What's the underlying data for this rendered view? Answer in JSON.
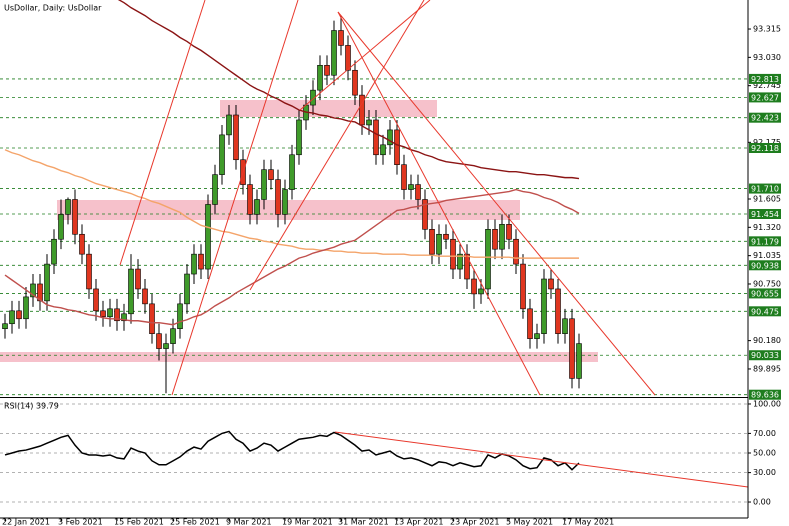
{
  "chart_data": [
    {
      "type": "candlestick",
      "title": "UsDollar, Daily:  UsDollar",
      "categories": [
        "22 Jan 2021",
        null,
        null,
        null,
        null,
        null,
        null,
        null,
        "3 Feb 2021",
        null,
        null,
        null,
        null,
        null,
        null,
        null,
        "15 Feb 2021",
        null,
        null,
        null,
        null,
        null,
        null,
        null,
        "25 Feb 2021",
        null,
        null,
        null,
        null,
        null,
        null,
        null,
        "9 Mar 2021",
        null,
        null,
        null,
        null,
        null,
        null,
        null,
        "19 Mar 2021",
        null,
        null,
        null,
        null,
        null,
        null,
        null,
        "31 Mar 2021",
        null,
        null,
        null,
        null,
        null,
        null,
        null,
        "13 Apr 2021",
        null,
        null,
        null,
        null,
        null,
        null,
        null,
        "23 Apr 2021",
        null,
        null,
        null,
        null,
        null,
        null,
        null,
        "5 May 2021",
        null,
        null,
        null,
        null,
        null,
        null,
        null,
        "17 May 2021",
        null,
        null
      ],
      "open": [
        90.3,
        90.35,
        90.48,
        90.4,
        90.62,
        90.75,
        90.58,
        90.95,
        91.2,
        91.45,
        91.6,
        91.25,
        91.05,
        90.7,
        90.48,
        90.42,
        90.5,
        90.38,
        90.45,
        90.9,
        90.7,
        90.55,
        90.25,
        90.1,
        90.15,
        90.3,
        90.55,
        90.85,
        91.05,
        90.9,
        91.55,
        91.85,
        92.25,
        92.45,
        92.0,
        91.75,
        91.45,
        91.6,
        91.9,
        91.8,
        91.45,
        91.7,
        92.05,
        92.4,
        92.55,
        92.7,
        92.95,
        92.85,
        93.3,
        93.15,
        92.9,
        92.65,
        92.35,
        92.4,
        92.05,
        92.15,
        92.3,
        91.95,
        91.7,
        91.75,
        91.6,
        91.3,
        91.05,
        91.25,
        91.2,
        90.9,
        91.05,
        90.8,
        90.65,
        90.7,
        91.3,
        91.1,
        91.35,
        91.2,
        90.95,
        90.5,
        90.2,
        90.25,
        90.8,
        90.7,
        90.25,
        90.4,
        89.8
      ],
      "high": [
        90.45,
        90.58,
        90.58,
        90.72,
        90.85,
        90.85,
        91.05,
        91.3,
        91.6,
        91.62,
        91.7,
        91.35,
        91.15,
        90.8,
        90.58,
        90.6,
        90.6,
        90.55,
        91.05,
        91.0,
        90.8,
        90.65,
        90.35,
        90.25,
        90.4,
        90.65,
        90.95,
        91.15,
        91.15,
        91.65,
        91.95,
        92.35,
        92.55,
        92.55,
        92.1,
        91.85,
        91.7,
        92.0,
        92.0,
        91.9,
        91.8,
        92.15,
        92.5,
        92.65,
        92.8,
        93.05,
        93.05,
        93.4,
        93.45,
        93.25,
        93.0,
        92.75,
        92.5,
        92.5,
        92.25,
        92.4,
        92.4,
        92.05,
        91.85,
        91.85,
        91.7,
        91.4,
        91.35,
        91.35,
        91.3,
        91.15,
        91.15,
        90.9,
        90.8,
        91.4,
        91.4,
        91.45,
        91.45,
        91.3,
        91.05,
        90.6,
        90.35,
        90.9,
        90.9,
        90.8,
        90.5,
        90.5,
        90.25
      ],
      "low": [
        90.2,
        90.25,
        90.3,
        90.3,
        90.52,
        90.48,
        90.48,
        90.85,
        91.1,
        91.35,
        91.15,
        90.95,
        90.6,
        90.38,
        90.32,
        90.32,
        90.28,
        90.28,
        90.35,
        90.6,
        90.45,
        90.15,
        89.98,
        89.65,
        90.05,
        90.2,
        90.45,
        90.75,
        90.8,
        90.8,
        91.45,
        91.75,
        92.15,
        91.9,
        91.65,
        91.35,
        91.35,
        91.5,
        91.7,
        91.32,
        91.35,
        91.6,
        91.95,
        92.3,
        92.45,
        92.6,
        92.75,
        92.75,
        93.05,
        92.8,
        92.55,
        92.25,
        92.25,
        91.95,
        91.95,
        92.05,
        91.85,
        91.6,
        91.6,
        91.5,
        91.2,
        90.95,
        90.95,
        91.1,
        90.8,
        90.8,
        90.7,
        90.5,
        90.55,
        90.6,
        91.0,
        91.0,
        91.1,
        90.85,
        90.4,
        90.1,
        90.1,
        90.15,
        90.6,
        90.15,
        90.15,
        89.7,
        89.7
      ],
      "close": [
        90.35,
        90.48,
        90.4,
        90.62,
        90.75,
        90.58,
        90.95,
        91.2,
        91.45,
        91.6,
        91.25,
        91.05,
        90.7,
        90.48,
        90.42,
        90.5,
        90.38,
        90.45,
        90.9,
        90.7,
        90.55,
        90.25,
        90.1,
        90.15,
        90.3,
        90.55,
        90.85,
        91.05,
        90.9,
        91.55,
        91.85,
        92.25,
        92.45,
        92.0,
        91.75,
        91.45,
        91.6,
        91.9,
        91.8,
        91.45,
        91.7,
        92.05,
        92.4,
        92.55,
        92.7,
        92.95,
        92.85,
        93.3,
        93.15,
        92.9,
        92.65,
        92.35,
        92.4,
        92.05,
        92.15,
        92.3,
        91.95,
        91.7,
        91.75,
        91.6,
        91.3,
        91.05,
        91.25,
        91.2,
        90.9,
        91.05,
        90.8,
        90.65,
        90.7,
        91.3,
        91.1,
        91.35,
        91.2,
        90.95,
        90.5,
        90.2,
        90.25,
        90.8,
        90.7,
        90.25,
        90.4,
        89.8,
        90.15
      ],
      "up_color": "#3f9b2a",
      "down_color": "#e0361f",
      "series": [
        {
          "color": "#8b1414",
          "values": [
            null,
            null,
            null,
            null,
            null,
            null,
            null,
            null,
            null,
            null,
            null,
            null,
            null,
            null,
            null,
            null,
            93.62,
            93.58,
            93.53,
            93.49,
            93.45,
            93.4,
            93.36,
            93.32,
            93.28,
            93.23,
            93.19,
            93.14,
            93.1,
            93.05,
            93.0,
            92.95,
            92.9,
            92.85,
            92.8,
            92.75,
            92.71,
            92.68,
            92.64,
            92.61,
            92.57,
            92.54,
            92.5,
            92.48,
            92.47,
            92.45,
            92.44,
            92.42,
            92.41,
            92.39,
            92.38,
            92.34,
            92.3,
            92.26,
            92.23,
            92.19,
            92.15,
            92.13,
            92.1,
            92.08,
            92.05,
            92.03,
            92.0,
            91.98,
            91.97,
            91.96,
            91.95,
            91.94,
            91.92,
            91.91,
            91.9,
            91.89,
            91.88,
            91.88,
            91.87,
            91.86,
            91.85,
            91.85,
            91.84,
            91.83,
            91.82,
            91.82,
            91.81
          ]
        },
        {
          "color": "#f4a46a",
          "values": [
            92.1,
            92.07,
            92.05,
            92.02,
            91.99,
            91.97,
            91.94,
            91.92,
            91.89,
            91.87,
            91.84,
            91.82,
            91.79,
            91.76,
            91.74,
            91.72,
            91.7,
            91.68,
            91.66,
            91.63,
            91.61,
            91.58,
            91.56,
            91.53,
            91.5,
            91.47,
            91.42,
            91.38,
            91.34,
            91.32,
            91.3,
            91.28,
            91.27,
            91.25,
            91.23,
            91.21,
            91.2,
            91.18,
            91.17,
            91.15,
            91.14,
            91.13,
            91.11,
            91.1,
            91.1,
            91.09,
            91.09,
            91.08,
            91.08,
            91.07,
            91.07,
            91.06,
            91.06,
            91.06,
            91.05,
            91.05,
            91.05,
            91.05,
            91.04,
            91.04,
            91.04,
            91.04,
            91.03,
            91.03,
            91.03,
            91.03,
            91.03,
            91.02,
            91.02,
            91.02,
            91.02,
            91.02,
            91.02,
            91.01,
            91.01,
            91.01,
            91.01,
            91.01,
            91.01,
            91.01,
            91.01,
            91.01,
            91.01
          ]
        },
        {
          "color": "#c0504d",
          "values": [
            90.84,
            90.79,
            90.74,
            90.69,
            90.64,
            90.59,
            90.54,
            90.52,
            90.51,
            90.49,
            90.48,
            90.46,
            90.44,
            90.43,
            90.41,
            90.4,
            90.4,
            90.39,
            90.38,
            90.38,
            90.37,
            90.36,
            90.36,
            90.35,
            90.34,
            90.37,
            90.39,
            90.42,
            90.44,
            90.48,
            90.53,
            90.57,
            90.61,
            90.66,
            90.7,
            90.74,
            90.78,
            90.82,
            90.86,
            90.9,
            90.93,
            90.97,
            91.01,
            91.03,
            91.06,
            91.08,
            91.1,
            91.12,
            91.15,
            91.17,
            91.19,
            91.24,
            91.29,
            91.34,
            91.39,
            91.44,
            91.49,
            91.5,
            91.52,
            91.53,
            91.55,
            91.56,
            91.57,
            91.59,
            91.6,
            91.61,
            91.62,
            91.63,
            91.64,
            91.65,
            91.66,
            91.67,
            91.68,
            91.7,
            91.68,
            91.67,
            91.65,
            91.62,
            91.6,
            91.57,
            91.53,
            91.5,
            91.46
          ]
        }
      ],
      "levels": [
        92.813,
        92.627,
        92.423,
        92.118,
        {
          "value": 91.71,
          "label": "91.710"
        },
        91.454,
        91.179,
        90.938,
        90.655,
        90.475,
        90.033,
        89.636
      ],
      "level_color": "#1e7d1e",
      "ylim": [
        89.633,
        93.607
      ],
      "yticks": [
        93.315,
        {
          "value": 93.03,
          "label": "93.030"
        },
        92.745,
        92.175,
        91.605,
        {
          "value": 91.32,
          "label": "91.320"
        },
        91.035,
        {
          "value": 90.75,
          "label": "90.750"
        },
        {
          "value": 90.18,
          "label": "90.180"
        },
        89.895
      ]
    },
    {
      "type": "line",
      "title": "RSI(14) 39.79",
      "series": [
        {
          "color": "#000000",
          "values": [
            48,
            50,
            52,
            53,
            55,
            57,
            60,
            63,
            66,
            68,
            58,
            50,
            48,
            48,
            47,
            48,
            45,
            44,
            55,
            52,
            50,
            42,
            38,
            38,
            42,
            46,
            52,
            56,
            54,
            62,
            66,
            70,
            72,
            64,
            60,
            52,
            55,
            60,
            58,
            52,
            56,
            60,
            64,
            65,
            66,
            68,
            67,
            71,
            68,
            63,
            58,
            52,
            53,
            48,
            50,
            52,
            47,
            44,
            45,
            43,
            40,
            37,
            41,
            40,
            37,
            40,
            38,
            36,
            37,
            48,
            45,
            49,
            47,
            43,
            37,
            34,
            35,
            45,
            43,
            37,
            40,
            33,
            39.79
          ]
        }
      ],
      "ylim": [
        -16.3,
        106.1
      ],
      "yticks": [
        {
          "value": 100,
          "label": "100.00"
        },
        {
          "value": 70,
          "label": "70.00"
        },
        {
          "value": 50,
          "label": "50.00"
        },
        {
          "value": 30,
          "label": "30.00"
        },
        {
          "value": 0,
          "label": "0.00"
        }
      ]
    }
  ]
}
